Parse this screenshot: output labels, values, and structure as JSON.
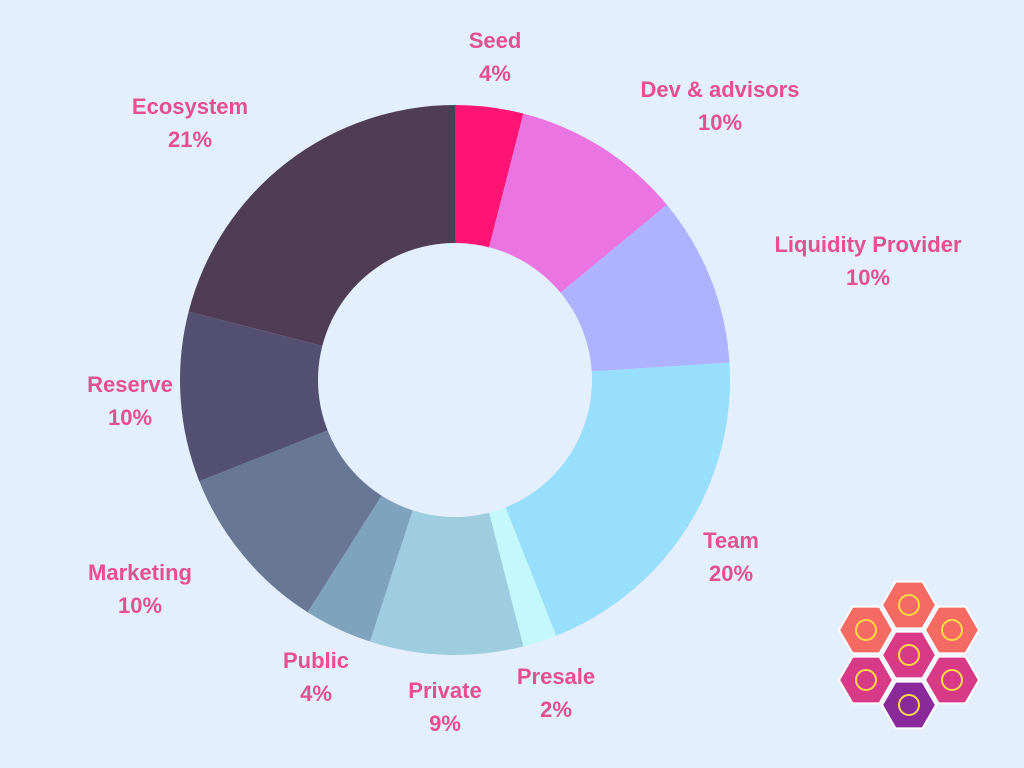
{
  "chart_data": {
    "type": "pie",
    "style": "donut",
    "title": "",
    "slices": [
      {
        "label": "Seed",
        "value": 4,
        "value_label": "4%",
        "color": "#ff1476"
      },
      {
        "label": "Dev & advisors",
        "value": 10,
        "value_label": "10%",
        "color": "#ea74e0"
      },
      {
        "label": "Liquidity Provider",
        "value": 10,
        "value_label": "10%",
        "color": "#adb3fe"
      },
      {
        "label": "Team",
        "value": 20,
        "value_label": "20%",
        "color": "#98dffd"
      },
      {
        "label": "Presale",
        "value": 2,
        "value_label": "2%",
        "color": "#c3f8fd"
      },
      {
        "label": "Private",
        "value": 9,
        "value_label": "9%",
        "color": "#9fcde0"
      },
      {
        "label": "Public",
        "value": 4,
        "value_label": "4%",
        "color": "#7fa2bd"
      },
      {
        "label": "Marketing",
        "value": 10,
        "value_label": "10%",
        "color": "#687894"
      },
      {
        "label": "Reserve",
        "value": 10,
        "value_label": "10%",
        "color": "#545071"
      },
      {
        "label": "Ecosystem",
        "value": 21,
        "value_label": "21%",
        "color": "#4f3d58"
      }
    ],
    "label_color": "#e5508f",
    "hole_color": "#e3effd"
  },
  "logo": {
    "name": "hexagon-cluster-logo",
    "colors": [
      "#f56a62",
      "#d93a88",
      "#8a2a9a",
      "#ffd94a"
    ]
  }
}
